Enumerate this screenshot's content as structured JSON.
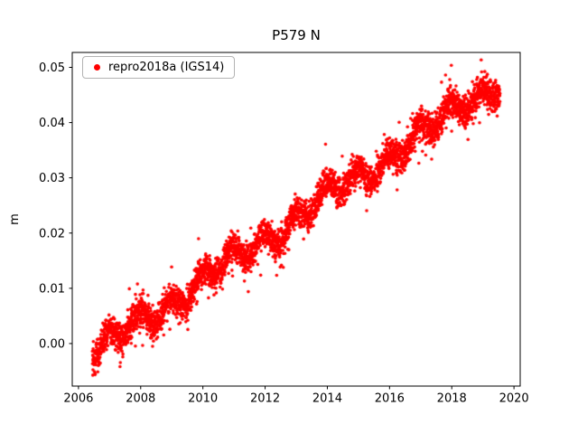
{
  "figure": {
    "background": "#ffffff"
  },
  "chart_data": {
    "type": "scatter",
    "title": "P579 N",
    "xlabel": "",
    "ylabel": "m",
    "xlim": [
      2005.8,
      2020.2
    ],
    "ylim": [
      -0.0077,
      0.0527
    ],
    "grid": false,
    "xticks": [
      2006,
      2008,
      2010,
      2012,
      2014,
      2016,
      2018,
      2020
    ],
    "xtick_labels": [
      "2006",
      "2008",
      "2010",
      "2012",
      "2014",
      "2016",
      "2018",
      "2020"
    ],
    "yticks": [
      0.0,
      0.01,
      0.02,
      0.03,
      0.04,
      0.05
    ],
    "ytick_labels": [
      "0.00",
      "0.01",
      "0.02",
      "0.03",
      "0.04",
      "0.05"
    ],
    "axis_color": "#000000",
    "legend": {
      "position": "upper-left",
      "entries": [
        {
          "label": "repro2018a (IGS14)",
          "color": "#ff0000",
          "marker": "dot"
        }
      ]
    },
    "series": [
      {
        "name": "repro2018a (IGS14)",
        "color": "#ff0000",
        "marker": "dot",
        "generator": {
          "comment": "dense daily GPS position time series, approx linear trend with seasonal wiggle and noise",
          "x_start": 2006.45,
          "x_end": 2019.55,
          "trend_y_start": -0.002,
          "trend_y_end": 0.0475,
          "seasonal_amplitude": 0.0016,
          "interannual_amplitude": 0.001,
          "interannual_period": 3.4,
          "noise_sd": 0.0013,
          "outlier_fraction": 0.06,
          "outlier_scale": 2.2,
          "n_points": 4000,
          "seed": 20181
        }
      }
    ]
  }
}
